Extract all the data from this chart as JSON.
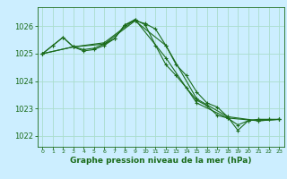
{
  "title": "Graphe pression niveau de la mer (hPa)",
  "background_color": "#cceeff",
  "grid_color": "#aaddcc",
  "line_color": "#1a6b1a",
  "x_ticks": [
    0,
    1,
    2,
    3,
    4,
    5,
    6,
    7,
    8,
    9,
    10,
    11,
    12,
    13,
    14,
    15,
    16,
    17,
    18,
    19,
    20,
    21,
    22,
    23
  ],
  "y_ticks": [
    1022,
    1023,
    1024,
    1025,
    1026
  ],
  "ylim": [
    1021.6,
    1026.7
  ],
  "xlim": [
    -0.5,
    23.5
  ],
  "line1_x": [
    0,
    1,
    2,
    3,
    4,
    5,
    6,
    7,
    8,
    9,
    10,
    11,
    12,
    13,
    14,
    15,
    16,
    17,
    18,
    19,
    20,
    21,
    22,
    23
  ],
  "line1_y": [
    1025.0,
    1025.3,
    1025.6,
    1025.25,
    1025.1,
    1025.15,
    1025.3,
    1025.55,
    1026.05,
    1026.2,
    1026.1,
    1025.9,
    1025.3,
    1024.6,
    1024.2,
    1023.6,
    1023.2,
    1023.05,
    1022.7,
    1022.2,
    1022.55,
    1022.6,
    1022.6,
    1022.6
  ],
  "line2_x": [
    0,
    1,
    2,
    3,
    4,
    5,
    6,
    7,
    8,
    9,
    10,
    11,
    12,
    13,
    14,
    15,
    16,
    17,
    18,
    19,
    20,
    21,
    22,
    23
  ],
  "line2_y": [
    1025.0,
    1025.3,
    1025.6,
    1025.25,
    1025.15,
    1025.2,
    1025.35,
    1025.55,
    1026.05,
    1026.25,
    1026.05,
    1025.3,
    1024.6,
    1024.2,
    1023.75,
    1023.3,
    1023.1,
    1022.75,
    1022.65,
    1022.4,
    1022.55,
    1022.6,
    1022.6,
    1022.6
  ],
  "line3_x": [
    0,
    3,
    6,
    9,
    12,
    15,
    18,
    21,
    23
  ],
  "line3_y": [
    1025.0,
    1025.25,
    1025.35,
    1026.2,
    1025.3,
    1023.35,
    1022.7,
    1022.55,
    1022.6
  ],
  "line4_x": [
    0,
    3,
    6,
    9,
    12,
    15,
    18,
    21,
    23
  ],
  "line4_y": [
    1025.0,
    1025.25,
    1025.4,
    1026.25,
    1024.85,
    1023.2,
    1022.65,
    1022.55,
    1022.6
  ],
  "title_fontsize": 6.5,
  "ytick_fontsize": 6,
  "xtick_fontsize": 4.5
}
